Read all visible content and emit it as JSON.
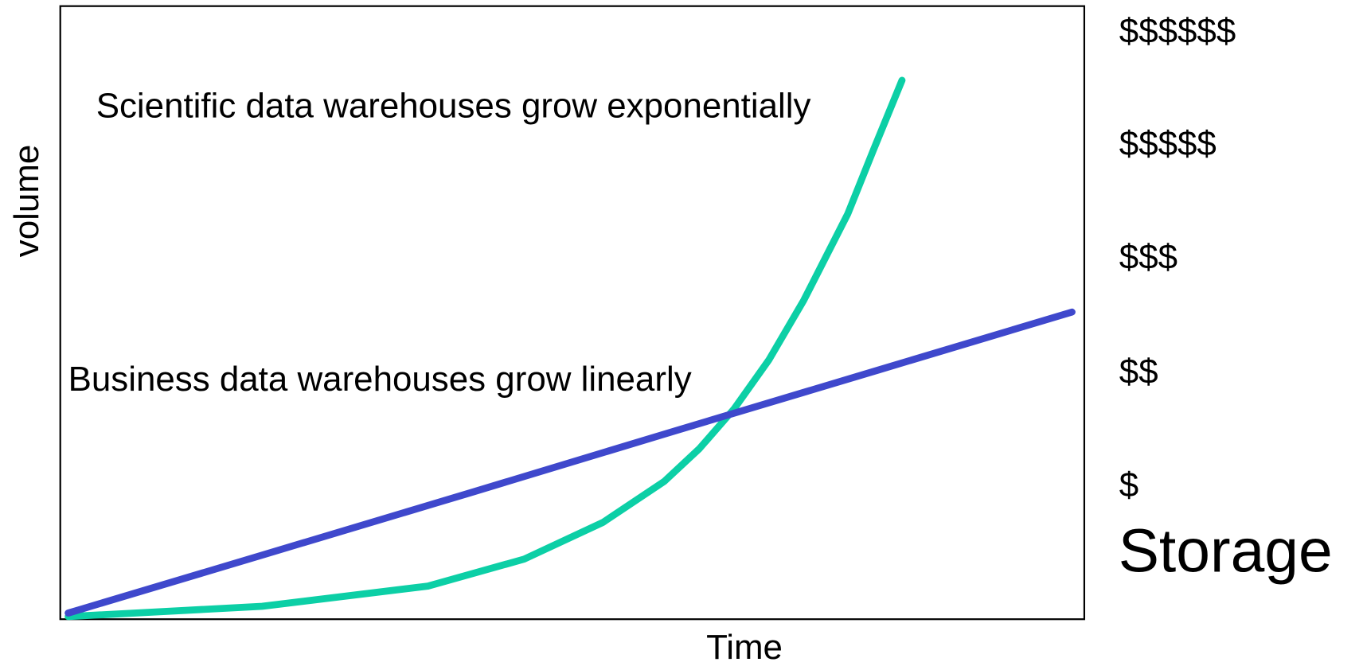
{
  "chart_data": {
    "type": "line",
    "xlabel": "Time",
    "ylabel": "volume",
    "xlim": [
      0,
      100
    ],
    "ylim": [
      0,
      100
    ],
    "annotations": [
      "Scientific data warehouses grow exponentially",
      "Business data warehouses grow linearly"
    ],
    "storage_levels": [
      "$$$$$$",
      "$$$$$",
      "$$$",
      "$$",
      "$"
    ],
    "storage_label": "Storage",
    "series": [
      {
        "color": "#0ccfa6",
        "x": [
          0.77,
          19.7,
          35.9,
          45.3,
          53.0,
          59.0,
          62.4,
          65.8,
          69.2,
          72.6,
          76.9,
          79.4,
          82.2
        ],
        "values": [
          0.43,
          2.1,
          5.4,
          9.8,
          15.8,
          22.5,
          27.8,
          34.3,
          42.3,
          52.0,
          66.1,
          76.5,
          87.9
        ]
      },
      {
        "color": "#3f48cc",
        "x": [
          0.77,
          20,
          40,
          60,
          80,
          98.8
        ],
        "values": [
          1.0,
          10.6,
          20.6,
          30.7,
          40.7,
          50.1
        ]
      }
    ]
  }
}
